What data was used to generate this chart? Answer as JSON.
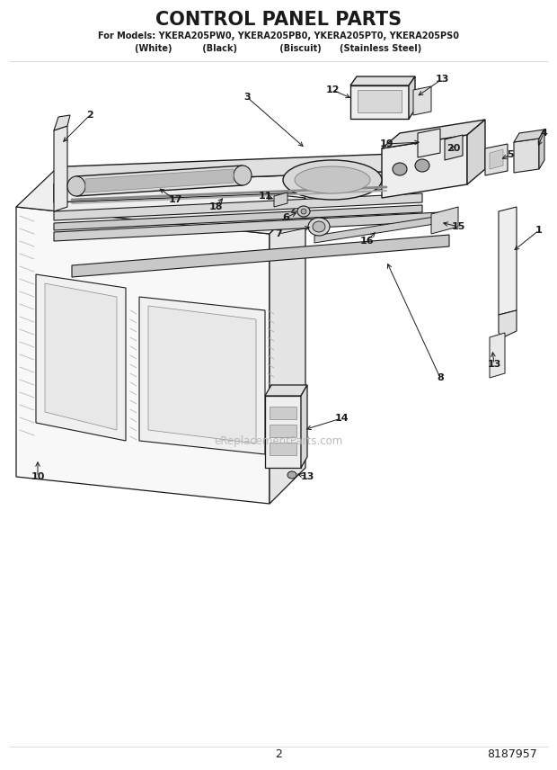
{
  "title": "CONTROL PANEL PARTS",
  "subtitle": "For Models: YKERA205PW0, YKERA205PB0, YKERA205PT0, YKERA205PS0",
  "subtitle2": "(White)          (Black)              (Biscuit)      (Stainless Steel)",
  "page_number": "2",
  "part_number": "8187957",
  "watermark": "eReplacementParts.com",
  "bg_color": "#ffffff",
  "lc": "#1a1a1a"
}
